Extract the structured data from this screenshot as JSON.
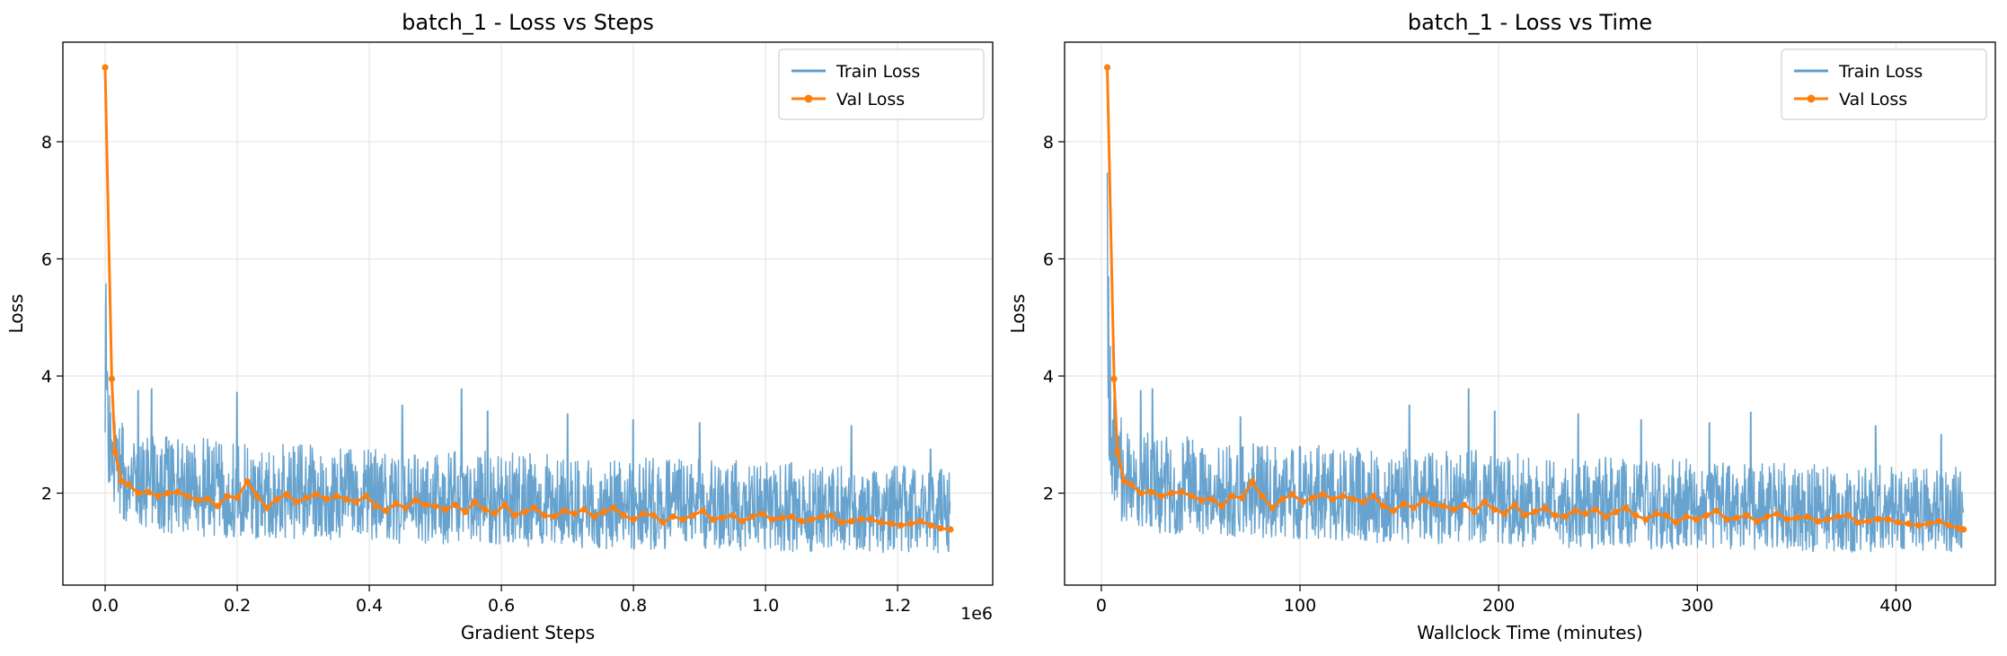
{
  "colors": {
    "train": "#5f9ecb",
    "val": "#ff7f0e",
    "grid": "#e6e6e6",
    "axis": "#000000"
  },
  "chart_data": [
    {
      "type": "line",
      "title": "batch_1 - Loss vs Steps",
      "xlabel": "Gradient Steps",
      "ylabel": "Loss",
      "x_offset_label": "1e6",
      "xlim": [
        -0.064,
        1.344
      ],
      "ylim": [
        0.43,
        9.7
      ],
      "xticks": [
        0.0,
        0.2,
        0.4,
        0.6,
        0.8,
        1.0,
        1.2
      ],
      "xtick_labels": [
        "0.0",
        "0.2",
        "0.4",
        "0.6",
        "0.8",
        "1.0",
        "1.2"
      ],
      "yticks": [
        2,
        4,
        6,
        8
      ],
      "ytick_labels": [
        "2",
        "4",
        "6",
        "8"
      ],
      "grid": true,
      "legend_position": "top-right",
      "series": [
        {
          "name": "Train Loss",
          "style": "line",
          "x_range": [
            0.0,
            1.28
          ],
          "envelope": {
            "x": [
              0.0,
              0.003,
              0.006,
              0.01,
              0.02,
              0.04,
              0.08,
              0.15,
              0.25,
              0.4,
              0.55,
              0.7,
              0.85,
              1.0,
              1.15,
              1.28
            ],
            "upper": [
              8.0,
              5.5,
              4.3,
              3.6,
              3.3,
              3.1,
              3.0,
              2.95,
              2.85,
              2.8,
              2.75,
              2.65,
              2.6,
              2.55,
              2.5,
              2.45
            ],
            "lower": [
              3.0,
              2.4,
              2.0,
              1.7,
              1.5,
              1.4,
              1.3,
              1.25,
              1.2,
              1.15,
              1.1,
              1.05,
              1.02,
              1.0,
              0.98,
              0.95
            ]
          },
          "spikes": [
            {
              "x": 0.05,
              "y": 3.75
            },
            {
              "x": 0.07,
              "y": 3.78
            },
            {
              "x": 0.2,
              "y": 3.72
            },
            {
              "x": 0.45,
              "y": 3.5
            },
            {
              "x": 0.54,
              "y": 3.78
            },
            {
              "x": 0.58,
              "y": 3.4
            },
            {
              "x": 0.7,
              "y": 3.35
            },
            {
              "x": 0.8,
              "y": 3.25
            },
            {
              "x": 0.9,
              "y": 3.2
            },
            {
              "x": 1.13,
              "y": 3.15
            },
            {
              "x": 1.25,
              "y": 2.75
            }
          ]
        },
        {
          "name": "Val Loss",
          "style": "line-marker",
          "x": [
            0.0,
            0.01,
            0.015,
            0.025,
            0.035,
            0.05,
            0.065,
            0.08,
            0.095,
            0.11,
            0.125,
            0.14,
            0.155,
            0.17,
            0.185,
            0.2,
            0.215,
            0.23,
            0.245,
            0.26,
            0.275,
            0.29,
            0.305,
            0.32,
            0.335,
            0.35,
            0.365,
            0.38,
            0.395,
            0.41,
            0.425,
            0.44,
            0.455,
            0.47,
            0.485,
            0.5,
            0.515,
            0.53,
            0.545,
            0.56,
            0.575,
            0.59,
            0.605,
            0.62,
            0.635,
            0.65,
            0.665,
            0.68,
            0.695,
            0.71,
            0.725,
            0.74,
            0.755,
            0.77,
            0.785,
            0.8,
            0.815,
            0.83,
            0.845,
            0.86,
            0.875,
            0.89,
            0.905,
            0.92,
            0.935,
            0.95,
            0.965,
            0.98,
            0.995,
            1.01,
            1.025,
            1.04,
            1.055,
            1.07,
            1.085,
            1.1,
            1.115,
            1.13,
            1.145,
            1.16,
            1.175,
            1.19,
            1.205,
            1.22,
            1.235,
            1.25,
            1.265,
            1.28
          ],
          "y": [
            9.27,
            3.95,
            2.7,
            2.2,
            2.15,
            2.0,
            2.02,
            1.95,
            2.0,
            2.02,
            1.95,
            1.88,
            1.9,
            1.78,
            1.95,
            1.92,
            2.2,
            1.95,
            1.75,
            1.9,
            1.98,
            1.85,
            1.92,
            1.98,
            1.9,
            1.95,
            1.9,
            1.85,
            1.95,
            1.78,
            1.7,
            1.82,
            1.75,
            1.88,
            1.8,
            1.78,
            1.72,
            1.8,
            1.68,
            1.85,
            1.72,
            1.65,
            1.8,
            1.62,
            1.68,
            1.75,
            1.62,
            1.6,
            1.7,
            1.65,
            1.72,
            1.6,
            1.68,
            1.75,
            1.62,
            1.55,
            1.65,
            1.62,
            1.5,
            1.6,
            1.55,
            1.62,
            1.7,
            1.55,
            1.58,
            1.62,
            1.52,
            1.6,
            1.65,
            1.55,
            1.58,
            1.6,
            1.52,
            1.55,
            1.6,
            1.62,
            1.5,
            1.52,
            1.56,
            1.55,
            1.5,
            1.48,
            1.45,
            1.48,
            1.52,
            1.45,
            1.4,
            1.38
          ]
        }
      ]
    },
    {
      "type": "line",
      "title": "batch_1 - Loss vs Time",
      "xlabel": "Wallclock Time (minutes)",
      "ylabel": "Loss",
      "xlim": [
        -18.5,
        450
      ],
      "ylim": [
        0.43,
        9.7
      ],
      "xticks": [
        0,
        100,
        200,
        300,
        400
      ],
      "xtick_labels": [
        "0",
        "100",
        "200",
        "300",
        "400"
      ],
      "yticks": [
        2,
        4,
        6,
        8
      ],
      "ytick_labels": [
        "2",
        "4",
        "6",
        "8"
      ],
      "grid": true,
      "legend_position": "top-right",
      "series": [
        {
          "name": "Train Loss",
          "style": "line",
          "x_range": [
            3.0,
            434.0
          ],
          "envelope": {
            "x": [
              3.0,
              4.0,
              5.0,
              6.5,
              10,
              17,
              30,
              55,
              87,
              138,
              188,
              239,
              290,
              340,
              391,
              434
            ],
            "upper": [
              8.0,
              5.5,
              4.3,
              3.6,
              3.3,
              3.1,
              3.0,
              2.95,
              2.85,
              2.8,
              2.75,
              2.65,
              2.6,
              2.55,
              2.5,
              2.45
            ],
            "lower": [
              3.0,
              2.4,
              2.0,
              1.7,
              1.5,
              1.4,
              1.3,
              1.25,
              1.2,
              1.15,
              1.1,
              1.05,
              1.02,
              1.0,
              0.98,
              0.95
            ]
          },
          "spikes": [
            {
              "x": 20,
              "y": 3.75
            },
            {
              "x": 26,
              "y": 3.78
            },
            {
              "x": 70,
              "y": 3.3
            },
            {
              "x": 155,
              "y": 3.5
            },
            {
              "x": 185,
              "y": 3.78
            },
            {
              "x": 198,
              "y": 3.4
            },
            {
              "x": 240,
              "y": 3.35
            },
            {
              "x": 272,
              "y": 3.25
            },
            {
              "x": 306,
              "y": 3.2
            },
            {
              "x": 327,
              "y": 3.38
            },
            {
              "x": 390,
              "y": 3.15
            },
            {
              "x": 423,
              "y": 3.0
            }
          ]
        },
        {
          "name": "Val Loss",
          "style": "line-marker",
          "x": [
            3.0,
            6.4,
            8.1,
            11.5,
            14.9,
            20.0,
            25.0,
            30.1,
            35.2,
            40.3,
            45.4,
            50.5,
            55.5,
            60.6,
            65.7,
            70.8,
            75.9,
            81.0,
            86.0,
            91.1,
            96.2,
            101.3,
            106.4,
            111.5,
            116.5,
            121.6,
            126.7,
            131.8,
            136.9,
            142.0,
            147.0,
            152.1,
            157.2,
            162.3,
            167.4,
            172.4,
            177.5,
            182.6,
            187.7,
            192.8,
            197.9,
            202.9,
            208.0,
            213.1,
            218.2,
            223.3,
            228.4,
            233.4,
            238.5,
            243.6,
            248.7,
            253.8,
            258.9,
            263.9,
            269.0,
            274.1,
            279.2,
            284.3,
            289.4,
            294.4,
            299.5,
            304.6,
            309.7,
            314.8,
            319.9,
            324.9,
            330.0,
            335.1,
            340.2,
            345.3,
            350.4,
            355.4,
            360.5,
            365.6,
            370.7,
            375.8,
            380.9,
            385.9,
            391.0,
            396.1,
            401.2,
            406.3,
            411.4,
            416.4,
            421.5,
            426.6,
            431.7,
            434.0
          ],
          "y": [
            9.27,
            3.95,
            2.7,
            2.2,
            2.15,
            2.0,
            2.02,
            1.95,
            2.0,
            2.02,
            1.95,
            1.88,
            1.9,
            1.78,
            1.95,
            1.92,
            2.2,
            1.95,
            1.75,
            1.9,
            1.98,
            1.85,
            1.92,
            1.98,
            1.9,
            1.95,
            1.9,
            1.85,
            1.95,
            1.78,
            1.7,
            1.82,
            1.75,
            1.88,
            1.8,
            1.78,
            1.72,
            1.8,
            1.68,
            1.85,
            1.72,
            1.65,
            1.8,
            1.62,
            1.68,
            1.75,
            1.62,
            1.6,
            1.7,
            1.65,
            1.72,
            1.6,
            1.68,
            1.75,
            1.62,
            1.55,
            1.65,
            1.62,
            1.5,
            1.6,
            1.55,
            1.62,
            1.7,
            1.55,
            1.58,
            1.62,
            1.52,
            1.6,
            1.65,
            1.55,
            1.58,
            1.6,
            1.52,
            1.55,
            1.6,
            1.62,
            1.5,
            1.52,
            1.56,
            1.55,
            1.5,
            1.48,
            1.45,
            1.48,
            1.52,
            1.45,
            1.4,
            1.38
          ]
        }
      ]
    }
  ]
}
